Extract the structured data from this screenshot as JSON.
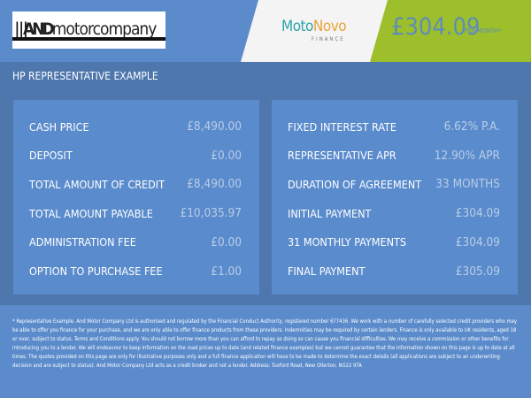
{
  "header": {
    "logo_text_bold": "AND",
    "logo_text": "motorcompany",
    "finance_brand_a": "Moto",
    "finance_brand_b": "Novo",
    "finance_brand_sub": "FINANCE",
    "monthly_amount": "£304.09",
    "per_month": "PER MONTH*",
    "colors": {
      "header": "#5b8bcb",
      "finance": "#f4f4f4",
      "price": "#9dbf2c"
    }
  },
  "title": "HP REPRESENTATIVE EXAMPLE",
  "left": [
    {
      "label": "CASH PRICE",
      "value": "£8,490.00"
    },
    {
      "label": "DEPOSIT",
      "value": "£0.00"
    },
    {
      "label": "TOTAL AMOUNT OF CREDIT",
      "value": "£8,490.00"
    },
    {
      "label": "TOTAL AMOUNT PAYABLE",
      "value": "£10,035.97"
    },
    {
      "label": "ADMINISTRATION FEE",
      "value": "£0.00"
    },
    {
      "label": "OPTION TO PURCHASE FEE",
      "value": "£1.00"
    }
  ],
  "right": [
    {
      "label": "FIXED INTEREST RATE",
      "value": "6.62% P.A."
    },
    {
      "label": "REPRESENTATIVE APR",
      "value": "12.90% APR"
    },
    {
      "label": "DURATION OF AGREEMENT",
      "value": "33 MONTHS"
    },
    {
      "label": "INITIAL PAYMENT",
      "value": "£304.09"
    },
    {
      "label": "31 MONTHLY PAYMENTS",
      "value": "£304.09"
    },
    {
      "label": "FINAL PAYMENT",
      "value": "£305.09"
    }
  ],
  "disclaimer": "* Representative Example. And Motor Company Ltd is authorised and regulated by the Financial Conduct Authority, registered number 677436. We work with a number of carefully selected credit providers who may be able to offer you finance for your purchase, and we are only able to offer finance products from these providers. Indemnities may be required by certain lenders. Finance is only available to UK residents, aged 18 or over, subject to status. Terms and Conditions apply. You should not borrow more than you can afford to repay as doing so can cause you financial difficulties. We may receive a commission or other benefits for introducing you to a lender. We will endeavour to keep information on the road prices up to date (and related finance examples) but we cannot guarantee that the information shown on this page is up to date at all times. The quotes provided on this page are only for illustrative purposes only and a full finance application will have to be made to determine the exact details (all applications are subject to an underwriting decision and are subject to status). And Motor Company Ltd acts as a credit broker and not a lender. Address: Tuxford Road, New Ollerton, NG22 9TA"
}
